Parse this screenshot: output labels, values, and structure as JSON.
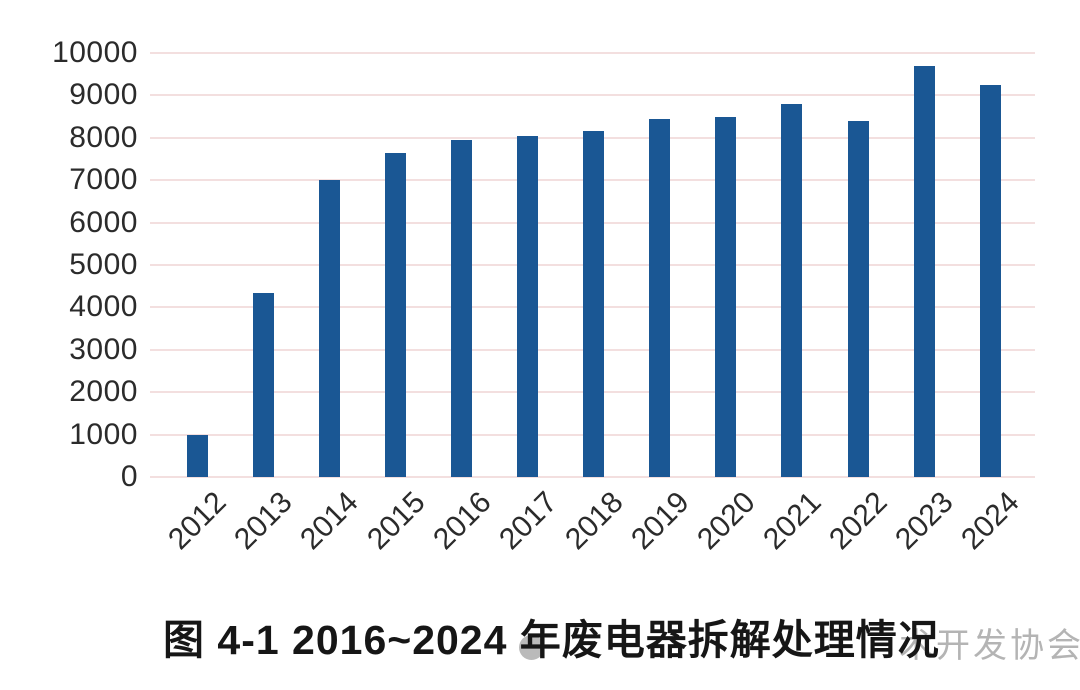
{
  "figure": {
    "caption": "图 4-1 2016~2024 年废电器拆解处理情况",
    "watermark": {
      "visible_text": "术开发协会",
      "logo_icon": "circle-logo",
      "text_color": "#b4b4b4",
      "logo_color": "#a3a3a3"
    }
  },
  "chart_data": {
    "type": "bar",
    "title": "图 4-1 2016~2024 年废电器拆解处理情况",
    "categories": [
      "2012",
      "2013",
      "2014",
      "2015",
      "2016",
      "2017",
      "2018",
      "2019",
      "2020",
      "2021",
      "2022",
      "2023",
      "2024"
    ],
    "values": [
      1000,
      4350,
      7000,
      7650,
      7950,
      8050,
      8150,
      8450,
      8500,
      8800,
      8400,
      9700,
      9250
    ],
    "xlabel": "",
    "ylabel": "",
    "ylim": [
      0,
      10000
    ],
    "yticks": [
      0,
      1000,
      2000,
      3000,
      4000,
      5000,
      6000,
      7000,
      8000,
      9000,
      10000
    ],
    "grid": true,
    "legend": false,
    "x_label_rotation_deg": -45,
    "colors": {
      "bar": "#1a5794",
      "gridline": "#f3dfdf",
      "tick_label": "#2b2b2b",
      "caption": "#161616"
    }
  }
}
